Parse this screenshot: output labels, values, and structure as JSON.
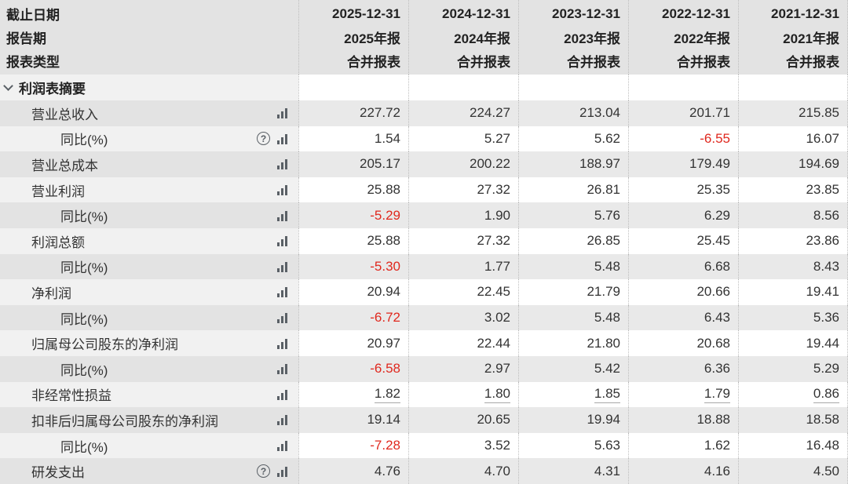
{
  "header": {
    "row_labels": [
      "截止日期",
      "报告期",
      "报表类型"
    ],
    "columns": [
      {
        "date": "2025-12-31",
        "period": "2025年报",
        "report_type": "合并报表"
      },
      {
        "date": "2024-12-31",
        "period": "2024年报",
        "report_type": "合并报表"
      },
      {
        "date": "2023-12-31",
        "period": "2023年报",
        "report_type": "合并报表"
      },
      {
        "date": "2022-12-31",
        "period": "2022年报",
        "report_type": "合并报表"
      },
      {
        "date": "2021-12-31",
        "period": "2021年报",
        "report_type": "合并报表"
      }
    ]
  },
  "section": {
    "title": "利润表摘要"
  },
  "rows": [
    {
      "label": "营业总收入",
      "values": [
        "227.72",
        "224.27",
        "213.04",
        "201.71",
        "215.85"
      ]
    },
    {
      "label": "同比(%)",
      "values": [
        "1.54",
        "5.27",
        "5.62",
        "-6.55",
        "16.07"
      ]
    },
    {
      "label": "营业总成本",
      "values": [
        "205.17",
        "200.22",
        "188.97",
        "179.49",
        "194.69"
      ]
    },
    {
      "label": "营业利润",
      "values": [
        "25.88",
        "27.32",
        "26.81",
        "25.35",
        "23.85"
      ]
    },
    {
      "label": "同比(%)",
      "values": [
        "-5.29",
        "1.90",
        "5.76",
        "6.29",
        "8.56"
      ]
    },
    {
      "label": "利润总额",
      "values": [
        "25.88",
        "27.32",
        "26.85",
        "25.45",
        "23.86"
      ]
    },
    {
      "label": "同比(%)",
      "values": [
        "-5.30",
        "1.77",
        "5.48",
        "6.68",
        "8.43"
      ]
    },
    {
      "label": "净利润",
      "values": [
        "20.94",
        "22.45",
        "21.79",
        "20.66",
        "19.41"
      ]
    },
    {
      "label": "同比(%)",
      "values": [
        "-6.72",
        "3.02",
        "5.48",
        "6.43",
        "5.36"
      ]
    },
    {
      "label": "归属母公司股东的净利润",
      "values": [
        "20.97",
        "22.44",
        "21.80",
        "20.68",
        "19.44"
      ]
    },
    {
      "label": "同比(%)",
      "values": [
        "-6.58",
        "2.97",
        "5.42",
        "6.36",
        "5.29"
      ]
    },
    {
      "label": "非经常性损益",
      "values": [
        "1.82",
        "1.80",
        "1.85",
        "1.79",
        "0.86"
      ]
    },
    {
      "label": "扣非后归属母公司股东的净利润",
      "values": [
        "19.14",
        "20.65",
        "19.94",
        "18.88",
        "18.58"
      ]
    },
    {
      "label": "同比(%)",
      "values": [
        "-7.28",
        "3.52",
        "5.63",
        "1.62",
        "16.48"
      ]
    },
    {
      "label": "研发支出",
      "values": [
        "4.76",
        "4.70",
        "4.31",
        "4.16",
        "4.50"
      ]
    }
  ],
  "icons": {
    "help_glyph": "?",
    "bar_chart": "bar-chart",
    "chevron": "chevron-down"
  },
  "colors": {
    "negative_value": "#e0281e",
    "header_bg": "#e3e3e3",
    "gray_row_bg": "#e9e9e9",
    "label_column_bg": "#f1f1f1"
  }
}
